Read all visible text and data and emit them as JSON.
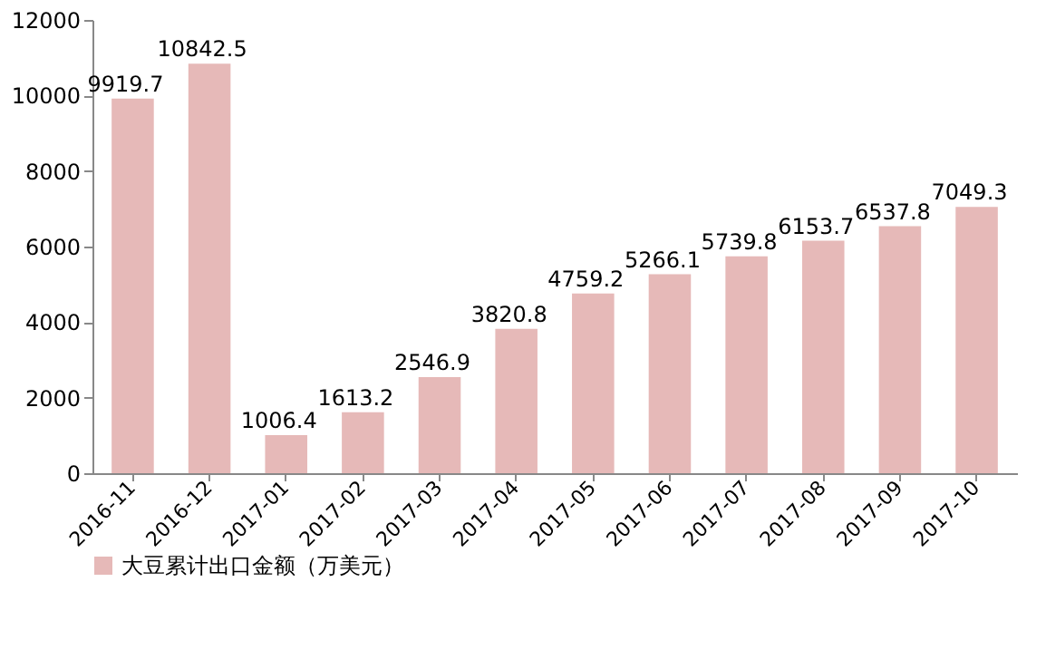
{
  "chart_data": {
    "type": "bar",
    "categories": [
      "2016-11",
      "2016-12",
      "2017-01",
      "2017-02",
      "2017-03",
      "2017-04",
      "2017-05",
      "2017-06",
      "2017-07",
      "2017-08",
      "2017-09",
      "2017-10"
    ],
    "series": [
      {
        "name": "大豆累计出口金额（万美元）",
        "color": "#e6b9b8",
        "values": [
          9919.7,
          10842.5,
          1006.4,
          1613.2,
          2546.9,
          3820.8,
          4759.2,
          5266.1,
          5739.8,
          6153.7,
          6537.8,
          7049.3
        ]
      }
    ],
    "ylim": [
      0,
      12000
    ],
    "yticks": [
      0,
      2000,
      4000,
      6000,
      8000,
      10000,
      12000
    ],
    "grid": false,
    "legend": "bottom left",
    "data_labels": true
  }
}
